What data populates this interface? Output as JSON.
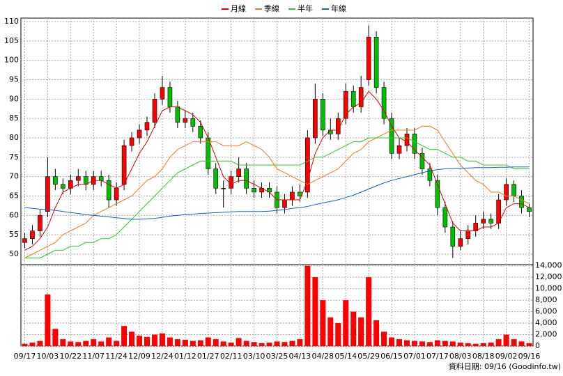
{
  "chart_data": {
    "type": "candlestick",
    "legend": "top",
    "grid": true,
    "up_color": "#ff0000",
    "down_color": "#00c000",
    "categories": [
      "09/17",
      null,
      null,
      "10/03",
      null,
      null,
      "10/22",
      null,
      null,
      "11/07",
      null,
      null,
      "11/24",
      null,
      null,
      "12/09",
      null,
      null,
      "12/24",
      null,
      null,
      "01/12",
      null,
      null,
      "01/27",
      null,
      null,
      "02/11",
      null,
      null,
      "03/10",
      null,
      null,
      "03/25",
      null,
      null,
      "04/13",
      null,
      null,
      "04/28",
      null,
      null,
      "05/14",
      null,
      null,
      "05/29",
      null,
      null,
      "06/15",
      null,
      null,
      "07/01",
      null,
      null,
      "07/17",
      null,
      null,
      "08/03",
      null,
      null,
      "08/18",
      null,
      null,
      "09/02",
      null,
      null,
      "09/16"
    ],
    "open": [
      53,
      54,
      56,
      61,
      70,
      68,
      67,
      69,
      70,
      68,
      70,
      69,
      64,
      68,
      78,
      80,
      82,
      84,
      90,
      93,
      88,
      84,
      85,
      83,
      80,
      72,
      67,
      67,
      70,
      72,
      67,
      66,
      67,
      66,
      62,
      64,
      66,
      66,
      80,
      90,
      82,
      81,
      85,
      92,
      88,
      95,
      106,
      93,
      85,
      76,
      78,
      81,
      76,
      72,
      69,
      62,
      57,
      52,
      54,
      56,
      58,
      59,
      58,
      64,
      68,
      65,
      62
    ],
    "high": [
      55.5,
      57.5,
      61.5,
      75,
      72,
      69.5,
      70.5,
      72,
      71.5,
      71.5,
      71.5,
      70.5,
      68.5,
      79.5,
      81.5,
      83.5,
      85.5,
      91.5,
      96,
      94.5,
      89.5,
      87,
      86.5,
      84.5,
      81.5,
      73.5,
      69,
      71.5,
      75,
      73.5,
      69,
      68.5,
      68.5,
      67.5,
      65.5,
      67.5,
      68,
      82,
      94,
      91.5,
      85,
      86.5,
      94,
      93.5,
      96,
      109,
      107.5,
      94.5,
      86.5,
      80,
      82.5,
      82.5,
      77.5,
      73.5,
      70.5,
      63.5,
      58.5,
      56,
      57.5,
      60,
      61,
      60.5,
      65.5,
      69.5,
      69,
      66.5,
      63
    ],
    "low": [
      51.5,
      52.5,
      54.5,
      59.5,
      66.5,
      65.5,
      65.5,
      67.5,
      66.5,
      66.5,
      67.5,
      62,
      62.5,
      66.5,
      76.5,
      78.5,
      80.5,
      82.5,
      88.5,
      86.5,
      82.5,
      82.5,
      81.5,
      78.5,
      70.5,
      65.5,
      62,
      65.5,
      68.5,
      65.5,
      64.5,
      64.5,
      64.5,
      60.5,
      60.5,
      62.5,
      63.5,
      64.5,
      78.5,
      80.5,
      79.5,
      79.5,
      83.5,
      86.5,
      86.5,
      93.5,
      91.5,
      83.5,
      74.5,
      74.5,
      76.5,
      74.5,
      70.5,
      67.5,
      60,
      55.5,
      49,
      51,
      52.5,
      54.5,
      56.5,
      56.5,
      56.5,
      62.5,
      63.5,
      60.5,
      59.5
    ],
    "close": [
      54,
      56,
      60,
      70,
      68,
      67,
      69,
      70,
      68,
      70,
      69,
      64,
      67,
      78,
      80,
      82,
      84,
      90,
      93,
      88,
      84,
      85,
      83,
      80,
      72,
      67,
      67,
      70,
      72,
      67,
      66,
      67,
      66,
      62,
      64,
      66,
      65,
      80,
      90,
      82,
      81,
      85,
      92,
      88,
      93,
      106,
      93,
      85,
      76,
      78,
      81,
      76,
      72,
      69,
      62,
      57,
      52,
      54,
      56,
      58,
      59,
      58,
      64,
      68,
      65,
      62,
      61
    ],
    "moving_averages": [
      {
        "name": "月線",
        "color": "#e00000",
        "values": [
          51,
          52,
          54,
          57,
          62,
          66,
          67,
          68,
          68,
          69,
          69,
          68,
          67,
          68,
          72,
          76,
          79,
          83,
          87,
          88,
          88,
          87,
          86,
          84,
          80,
          75,
          70,
          68,
          69,
          69,
          68,
          67,
          66,
          64,
          64,
          64,
          64,
          69,
          76,
          80,
          82,
          82,
          86,
          88,
          89,
          92,
          90,
          87,
          83,
          80,
          79,
          77,
          75,
          73,
          68,
          63,
          58,
          56,
          56,
          56,
          57,
          57,
          58,
          62,
          63,
          63,
          62
        ]
      },
      {
        "name": "季線",
        "color": "#f07820",
        "values": [
          49,
          50,
          51,
          52,
          53,
          55,
          56,
          57,
          58,
          60,
          61,
          62,
          63,
          64,
          65,
          67,
          69,
          70,
          72,
          75,
          77,
          78,
          79,
          79,
          79,
          79,
          78,
          78,
          78,
          79,
          78,
          77,
          75,
          72,
          71,
          70,
          69,
          68,
          69,
          70,
          71,
          72,
          74,
          76,
          77,
          79,
          80,
          81,
          82,
          82,
          82,
          82,
          83,
          83,
          82,
          79,
          76,
          73,
          71,
          69,
          68,
          66,
          66,
          65,
          65,
          64,
          63
        ]
      },
      {
        "name": "半年",
        "color": "#20d020",
        "values": [
          49,
          49,
          49,
          50,
          51,
          51,
          52,
          52,
          53,
          53,
          54,
          54,
          55,
          57,
          59,
          61,
          63,
          65,
          67,
          69,
          71,
          72,
          73,
          74,
          74,
          74,
          74,
          74,
          73,
          73,
          73,
          73,
          73,
          73,
          73,
          73,
          73,
          74,
          75,
          75,
          76,
          77,
          78,
          79,
          79,
          80,
          80,
          80,
          80,
          80,
          80,
          79,
          78,
          77,
          77,
          76,
          75,
          75,
          74,
          74,
          73,
          73,
          73,
          73,
          72,
          72,
          72
        ]
      },
      {
        "name": "年線",
        "color": "#1060d0",
        "values": [
          62,
          61.8,
          61.6,
          61.5,
          61.3,
          61,
          60.7,
          60.5,
          60.2,
          60,
          59.8,
          59.6,
          59.4,
          59.2,
          59,
          59,
          59.1,
          59.2,
          59.5,
          59.8,
          60,
          60.2,
          60.3,
          60.5,
          60.6,
          60.7,
          60.8,
          60.9,
          61,
          61,
          61,
          61,
          61.1,
          61.3,
          61.5,
          61.8,
          62,
          62.3,
          62.8,
          63.2,
          63.6,
          64,
          64.6,
          65.2,
          66,
          66.8,
          67.6,
          68.4,
          69,
          69.5,
          70,
          70.5,
          71,
          71.5,
          71.8,
          72,
          72.1,
          72.2,
          72.2,
          72.3,
          72.3,
          72.3,
          72.4,
          72.4,
          72.5,
          72.5,
          72.5
        ]
      }
    ],
    "ylim": [
      47.3,
      110.9
    ],
    "yticks": [
      50,
      55,
      60,
      65,
      70,
      75,
      80,
      85,
      90,
      95,
      100,
      105,
      110
    ],
    "volume": {
      "color": "#ff0000",
      "values": [
        400,
        600,
        900,
        9000,
        3000,
        1200,
        800,
        700,
        900,
        1200,
        800,
        1500,
        900,
        3500,
        2500,
        1800,
        1600,
        2000,
        2200,
        1500,
        1200,
        1100,
        900,
        1000,
        1500,
        1200,
        800,
        600,
        1400,
        900,
        700,
        500,
        600,
        800,
        700,
        900,
        1200,
        14000,
        12000,
        8000,
        5000,
        4000,
        8000,
        6000,
        5000,
        12000,
        4500,
        2500,
        1500,
        1200,
        1000,
        900,
        800,
        700,
        1000,
        900,
        800,
        600,
        500,
        400,
        500,
        600,
        1200,
        2000,
        1200,
        800,
        500
      ],
      "ylim": [
        0,
        14200
      ],
      "yticks": [
        0,
        {
          "value": 2000,
          "label": "2,000"
        },
        {
          "value": 4000,
          "label": "4,000"
        },
        {
          "value": 6000,
          "label": "6,000"
        },
        {
          "value": 8000,
          "label": "8,000"
        },
        {
          "value": 10000,
          "label": "10,000"
        },
        {
          "value": 12000,
          "label": "12,000"
        },
        {
          "value": 14000,
          "label": "14,000"
        }
      ]
    },
    "footer": "資料日期: 09/16 (Goodinfo.tw)"
  }
}
